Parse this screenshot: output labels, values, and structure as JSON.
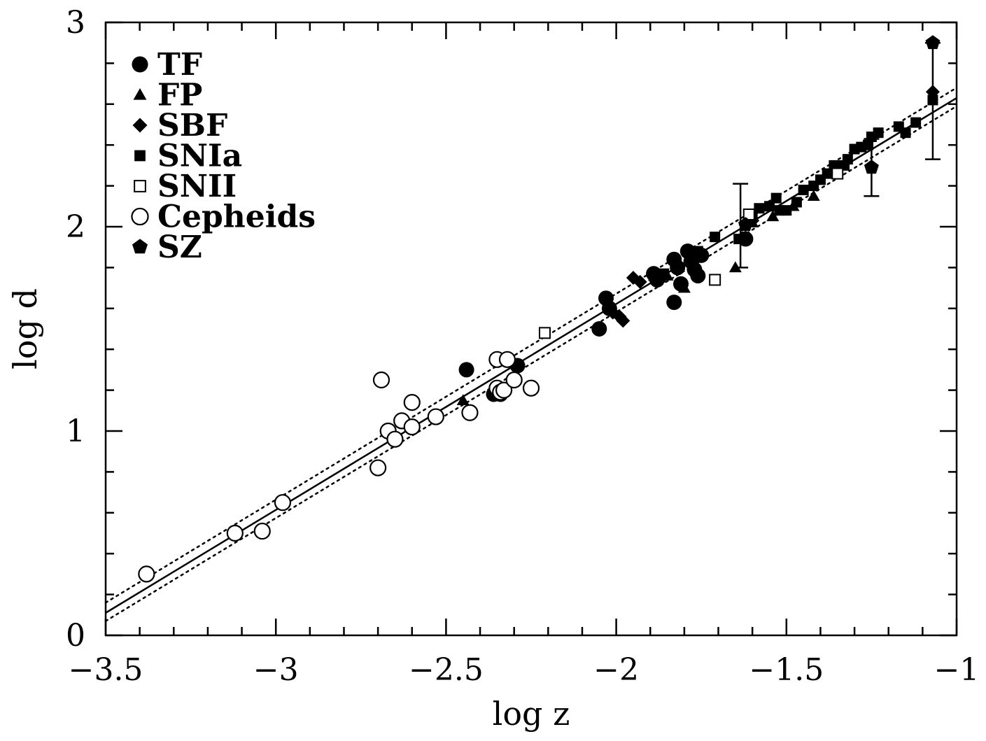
{
  "chart_data": {
    "type": "scatter",
    "title": "",
    "xlabel": "log z",
    "ylabel": "log d",
    "xlim": [
      -3.5,
      -1.0
    ],
    "ylim": [
      0,
      3
    ],
    "x_ticks": [
      -3.5,
      -3,
      -2.5,
      -2,
      -1.5,
      -1
    ],
    "x_tick_labels": [
      "−3.5",
      "−3",
      "−2.5",
      "−2",
      "−1.5",
      "−1"
    ],
    "y_ticks": [
      0,
      1,
      2,
      3
    ],
    "y_tick_labels": [
      "0",
      "1",
      "2",
      "3"
    ],
    "grid": false,
    "legend_position": "top-left",
    "fit_lines": [
      {
        "style": "solid",
        "points": [
          [
            -3.5,
            0.11
          ],
          [
            -1.0,
            2.63
          ]
        ]
      },
      {
        "style": "dotted",
        "points": [
          [
            -3.5,
            0.16
          ],
          [
            -1.0,
            2.68
          ]
        ]
      },
      {
        "style": "dotted",
        "points": [
          [
            -3.5,
            0.07
          ],
          [
            -1.0,
            2.59
          ]
        ]
      }
    ],
    "series": [
      {
        "name": "TF",
        "marker": "circle-filled",
        "points": [
          [
            -2.44,
            1.3
          ],
          [
            -2.36,
            1.18
          ],
          [
            -2.34,
            1.18
          ],
          [
            -2.29,
            1.32
          ],
          [
            -2.05,
            1.5
          ],
          [
            -2.03,
            1.65
          ],
          [
            -2.02,
            1.6
          ],
          [
            -1.89,
            1.77
          ],
          [
            -1.88,
            1.74
          ],
          [
            -1.83,
            1.84
          ],
          [
            -1.83,
            1.63
          ],
          [
            -1.82,
            1.8
          ],
          [
            -1.81,
            1.72
          ],
          [
            -1.79,
            1.88
          ],
          [
            -1.78,
            1.83
          ],
          [
            -1.77,
            1.79
          ],
          [
            -1.76,
            1.76
          ],
          [
            -1.75,
            1.86
          ],
          [
            -1.62,
            1.94
          ]
        ]
      },
      {
        "name": "FP",
        "marker": "triangle-filled",
        "points": [
          [
            -2.45,
            1.15
          ],
          [
            -1.87,
            1.75
          ],
          [
            -1.85,
            1.76
          ],
          [
            -1.8,
            1.7
          ],
          [
            -1.65,
            1.8
          ],
          [
            -1.63,
            1.95
          ],
          [
            -1.6,
            2.02
          ],
          [
            -1.54,
            2.05
          ],
          [
            -1.48,
            2.1
          ],
          [
            -1.42,
            2.15
          ]
        ]
      },
      {
        "name": "SBF",
        "marker": "diamond-filled",
        "points": [
          [
            -2.01,
            1.58
          ],
          [
            -1.99,
            1.56
          ],
          [
            -1.98,
            1.54
          ],
          [
            -1.95,
            1.75
          ],
          [
            -1.93,
            1.73
          ],
          [
            -1.62,
            2.01
          ],
          [
            -1.6,
            2.03
          ],
          [
            -1.07,
            2.66
          ]
        ]
      },
      {
        "name": "SNIa",
        "marker": "square-filled",
        "points": [
          [
            -1.89,
            1.76
          ],
          [
            -1.86,
            1.77
          ],
          [
            -1.78,
            1.86
          ],
          [
            -1.76,
            1.88
          ],
          [
            -1.71,
            1.95
          ],
          [
            -1.64,
            1.94
          ],
          [
            -1.6,
            2.05
          ],
          [
            -1.58,
            2.09
          ],
          [
            -1.55,
            2.1
          ],
          [
            -1.53,
            2.14
          ],
          [
            -1.52,
            2.08
          ],
          [
            -1.5,
            2.08
          ],
          [
            -1.47,
            2.12
          ],
          [
            -1.45,
            2.18
          ],
          [
            -1.42,
            2.2
          ],
          [
            -1.4,
            2.23
          ],
          [
            -1.38,
            2.26
          ],
          [
            -1.36,
            2.3
          ],
          [
            -1.35,
            2.28
          ],
          [
            -1.33,
            2.3
          ],
          [
            -1.32,
            2.33
          ],
          [
            -1.3,
            2.38
          ],
          [
            -1.28,
            2.39
          ],
          [
            -1.26,
            2.4
          ],
          [
            -1.25,
            2.44
          ],
          [
            -1.23,
            2.46
          ],
          [
            -1.17,
            2.49
          ],
          [
            -1.15,
            2.46
          ],
          [
            -1.12,
            2.51
          ],
          [
            -1.07,
            2.62
          ]
        ]
      },
      {
        "name": "SNII",
        "marker": "square-open",
        "points": [
          [
            -2.21,
            1.48
          ],
          [
            -1.71,
            1.74
          ],
          [
            -1.61,
            2.06
          ],
          [
            -1.35,
            2.26
          ]
        ]
      },
      {
        "name": "Cepheids",
        "marker": "circle-open",
        "points": [
          [
            -3.38,
            0.3
          ],
          [
            -3.12,
            0.5
          ],
          [
            -3.04,
            0.51
          ],
          [
            -2.98,
            0.65
          ],
          [
            -2.7,
            0.82
          ],
          [
            -2.69,
            1.25
          ],
          [
            -2.67,
            1.0
          ],
          [
            -2.65,
            0.96
          ],
          [
            -2.63,
            1.05
          ],
          [
            -2.6,
            1.02
          ],
          [
            -2.6,
            1.14
          ],
          [
            -2.53,
            1.07
          ],
          [
            -2.43,
            1.09
          ],
          [
            -2.35,
            1.35
          ],
          [
            -2.35,
            1.21
          ],
          [
            -2.34,
            1.19
          ],
          [
            -2.33,
            1.2
          ],
          [
            -2.32,
            1.35
          ],
          [
            -2.3,
            1.25
          ],
          [
            -2.25,
            1.21
          ]
        ]
      },
      {
        "name": "SZ",
        "marker": "pentagon-filled",
        "points": [
          [
            -1.62,
            2.01
          ],
          [
            -1.25,
            2.29
          ],
          [
            -1.07,
            2.9
          ]
        ]
      }
    ],
    "error_bars": [
      {
        "x": -1.635,
        "y": 1.98,
        "ylow": 1.8,
        "yhigh": 2.21
      },
      {
        "x": -1.25,
        "y": 2.29,
        "ylow": 2.15,
        "yhigh": 2.43
      },
      {
        "x": -1.07,
        "y": 2.9,
        "ylow": 2.33,
        "yhigh": 2.9
      }
    ]
  }
}
